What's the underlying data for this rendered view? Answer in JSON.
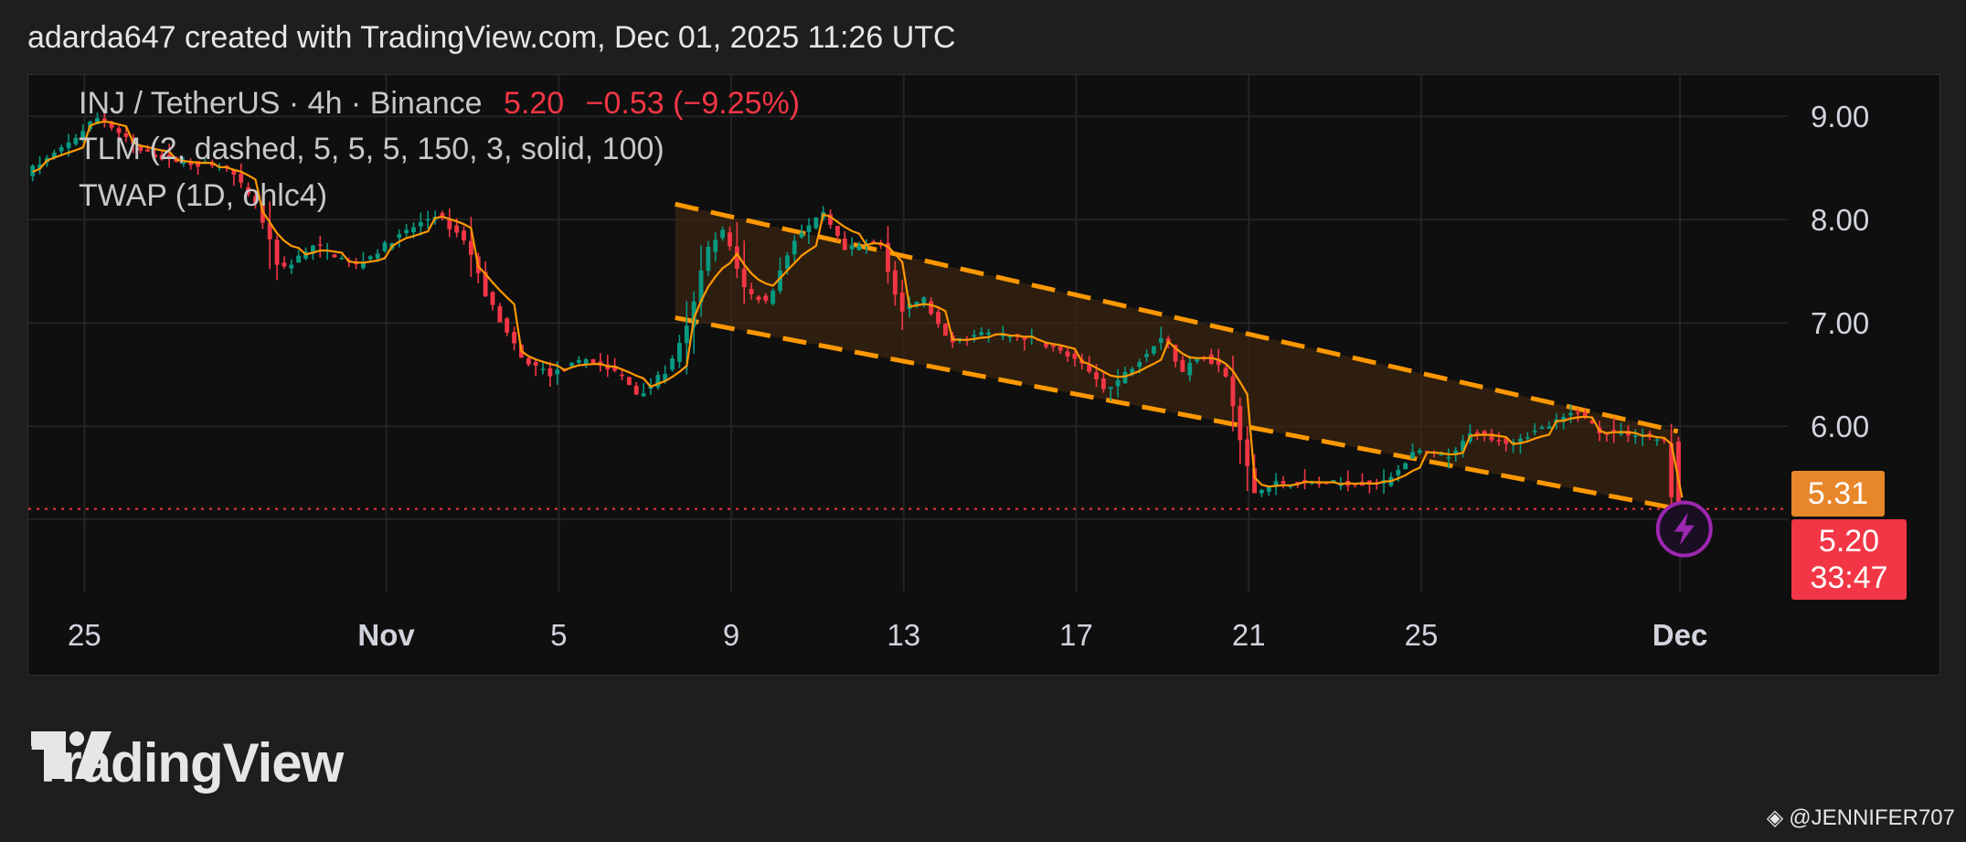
{
  "header": {
    "text": "adarda647 created with TradingView.com, Dec 01, 2025 11:26 UTC"
  },
  "legend": {
    "line1_symbol": "INJ / TetherUS · 4h · Binance",
    "line1_price": "5.20",
    "line1_change": "−0.53 (−9.25%)",
    "line2": "TLM (2, dashed, 5, 5, 5, 150, 3, solid, 100)",
    "line3": "TWAP (1D, ohlc4)"
  },
  "price_tags": {
    "twap": "5.31",
    "last": "5.20",
    "countdown": "33:47"
  },
  "logo": {
    "text": "TradingView"
  },
  "credit": {
    "text": "@JENNIFER707"
  },
  "colors": {
    "up": "#089981",
    "down": "#f23645",
    "channel": "#ff9800",
    "channel_fill": "#3a2410",
    "twap": "#ff9800",
    "bolt": "#9c27b0"
  },
  "chart_data": {
    "type": "candlestick",
    "symbol": "INJ / TetherUS",
    "interval": "4h",
    "exchange": "Binance",
    "last_price": 5.2,
    "change": -0.53,
    "change_pct": -9.25,
    "ylim": [
      4.4,
      9.4
    ],
    "yticks": [
      9.0,
      8.0,
      7.0,
      6.0
    ],
    "xticks": [
      {
        "label": "25",
        "day": -7,
        "bold": false
      },
      {
        "label": "Nov",
        "day": 0,
        "bold": true
      },
      {
        "label": "5",
        "day": 4,
        "bold": false
      },
      {
        "label": "9",
        "day": 8,
        "bold": false
      },
      {
        "label": "13",
        "day": 12,
        "bold": false
      },
      {
        "label": "17",
        "day": 16,
        "bold": false
      },
      {
        "label": "21",
        "day": 20,
        "bold": false
      },
      {
        "label": "25",
        "day": 24,
        "bold": false
      },
      {
        "label": "Dec",
        "day": 30,
        "bold": true
      }
    ],
    "price_anchors": [
      [
        -8.2,
        8.45
      ],
      [
        -7.3,
        8.7
      ],
      [
        -6.5,
        9.0
      ],
      [
        -5.5,
        8.65
      ],
      [
        -4.5,
        8.55
      ],
      [
        -3.5,
        8.5
      ],
      [
        -2.8,
        8.1
      ],
      [
        -2.3,
        7.5
      ],
      [
        -1.5,
        7.75
      ],
      [
        -0.5,
        7.55
      ],
      [
        0.3,
        7.8
      ],
      [
        1.3,
        8.05
      ],
      [
        2.0,
        7.8
      ],
      [
        2.5,
        7.25
      ],
      [
        3.3,
        6.65
      ],
      [
        4.0,
        6.5
      ],
      [
        4.8,
        6.65
      ],
      [
        5.6,
        6.5
      ],
      [
        6.0,
        6.3
      ],
      [
        6.7,
        6.55
      ],
      [
        7.1,
        6.9
      ],
      [
        7.6,
        7.7
      ],
      [
        8.0,
        7.9
      ],
      [
        8.5,
        7.3
      ],
      [
        9.0,
        7.2
      ],
      [
        9.6,
        7.8
      ],
      [
        10.3,
        8.05
      ],
      [
        10.8,
        7.7
      ],
      [
        11.6,
        7.8
      ],
      [
        12.1,
        7.1
      ],
      [
        12.6,
        7.25
      ],
      [
        13.2,
        6.8
      ],
      [
        14.0,
        6.9
      ],
      [
        15.2,
        6.85
      ],
      [
        15.9,
        6.7
      ],
      [
        16.4,
        6.55
      ],
      [
        16.9,
        6.35
      ],
      [
        17.4,
        6.55
      ],
      [
        18.2,
        6.9
      ],
      [
        18.6,
        6.5
      ],
      [
        19.0,
        6.7
      ],
      [
        19.6,
        6.55
      ],
      [
        20.0,
        5.8
      ],
      [
        20.3,
        5.35
      ],
      [
        20.8,
        5.45
      ],
      [
        21.8,
        5.45
      ],
      [
        23.3,
        5.45
      ],
      [
        24.0,
        5.75
      ],
      [
        24.9,
        5.7
      ],
      [
        25.3,
        5.95
      ],
      [
        26.2,
        5.85
      ],
      [
        27.1,
        6.0
      ],
      [
        27.8,
        6.15
      ],
      [
        28.3,
        5.95
      ],
      [
        29.3,
        5.92
      ],
      [
        29.8,
        5.85
      ],
      [
        30.0,
        5.2
      ]
    ],
    "channel": {
      "upper": {
        "start": [
          6.7,
          8.15
        ],
        "end": [
          29.95,
          5.95
        ]
      },
      "lower": {
        "start": [
          6.7,
          7.05
        ],
        "end": [
          29.95,
          5.2
        ]
      }
    },
    "twap_last": 5.31,
    "series": [
      {
        "name": "TLM",
        "type": "channel"
      },
      {
        "name": "TWAP",
        "type": "line"
      }
    ]
  }
}
